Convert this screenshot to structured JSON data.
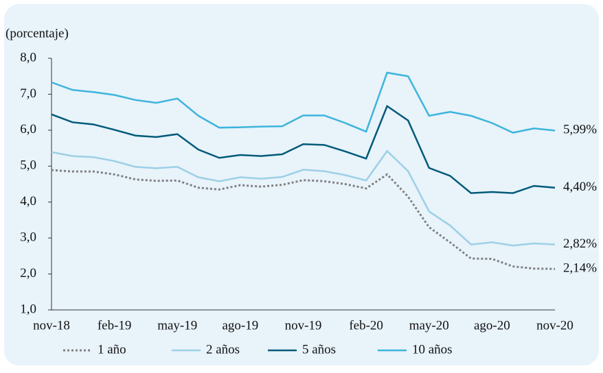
{
  "chart_data": {
    "type": "line",
    "y_label": "(porcentaje)",
    "categories": [
      "nov-18",
      null,
      null,
      "feb-19",
      null,
      null,
      "may-19",
      null,
      null,
      "ago-19",
      null,
      null,
      "nov-19",
      null,
      null,
      "feb-20",
      null,
      null,
      "may-20",
      null,
      null,
      "ago-20",
      null,
      null,
      "nov-20"
    ],
    "ylim": [
      1,
      8
    ],
    "yticks": [
      {
        "value": 1,
        "label": "1,0"
      },
      {
        "value": 2,
        "label": "2,0"
      },
      {
        "value": 3,
        "label": "3,0"
      },
      {
        "value": 4,
        "label": "4,0"
      },
      {
        "value": 5,
        "label": "5,0"
      },
      {
        "value": 6,
        "label": "6,0"
      },
      {
        "value": 7,
        "label": "7,0"
      },
      {
        "value": 8,
        "label": "8,0"
      }
    ],
    "series": [
      {
        "name": "1 año",
        "color": "#808080",
        "style": "dotted",
        "values": [
          4.89,
          4.85,
          4.85,
          4.77,
          4.63,
          4.59,
          4.6,
          4.4,
          4.35,
          4.47,
          4.43,
          4.48,
          4.61,
          4.58,
          4.5,
          4.38,
          4.77,
          4.15,
          3.3,
          2.88,
          2.43,
          2.42,
          2.21,
          2.15,
          2.14
        ],
        "value_labels": [
          null,
          null,
          null,
          null,
          null,
          null,
          null,
          null,
          null,
          null,
          null,
          null,
          null,
          null,
          null,
          null,
          null,
          null,
          null,
          null,
          null,
          null,
          null,
          null,
          "2,14%"
        ]
      },
      {
        "name": "2 años",
        "color": "#9dcfe6",
        "style": "solid",
        "values": [
          5.39,
          5.28,
          5.25,
          5.14,
          4.98,
          4.94,
          4.98,
          4.69,
          4.58,
          4.69,
          4.65,
          4.7,
          4.9,
          4.86,
          4.75,
          4.6,
          5.42,
          4.86,
          3.74,
          3.35,
          2.82,
          2.88,
          2.79,
          2.85,
          2.82
        ],
        "value_labels": [
          null,
          null,
          null,
          null,
          null,
          null,
          null,
          null,
          null,
          null,
          null,
          null,
          null,
          null,
          null,
          null,
          null,
          null,
          null,
          null,
          null,
          null,
          null,
          null,
          "2,82%"
        ]
      },
      {
        "name": "5 años",
        "color": "#005a78",
        "style": "solid",
        "values": [
          6.44,
          6.22,
          6.16,
          6.01,
          5.85,
          5.81,
          5.89,
          5.46,
          5.23,
          5.31,
          5.28,
          5.33,
          5.61,
          5.59,
          5.41,
          5.21,
          6.67,
          6.27,
          4.95,
          4.73,
          4.25,
          4.28,
          4.25,
          4.45,
          4.4
        ],
        "value_labels": [
          null,
          null,
          null,
          null,
          null,
          null,
          null,
          null,
          null,
          null,
          null,
          null,
          null,
          null,
          null,
          null,
          null,
          null,
          null,
          null,
          null,
          null,
          null,
          null,
          "4,40%"
        ]
      },
      {
        "name": "10 años",
        "color": "#3cb4dc",
        "style": "solid",
        "values": [
          7.33,
          7.12,
          7.06,
          6.98,
          6.84,
          6.76,
          6.88,
          6.4,
          6.07,
          6.08,
          6.1,
          6.11,
          6.41,
          6.41,
          6.2,
          5.96,
          7.6,
          7.5,
          6.4,
          6.51,
          6.4,
          6.2,
          5.93,
          6.05,
          5.99
        ],
        "value_labels": [
          null,
          null,
          null,
          null,
          null,
          null,
          null,
          null,
          null,
          null,
          null,
          null,
          null,
          null,
          null,
          null,
          null,
          null,
          null,
          null,
          null,
          null,
          null,
          null,
          "5,99%"
        ]
      }
    ]
  }
}
